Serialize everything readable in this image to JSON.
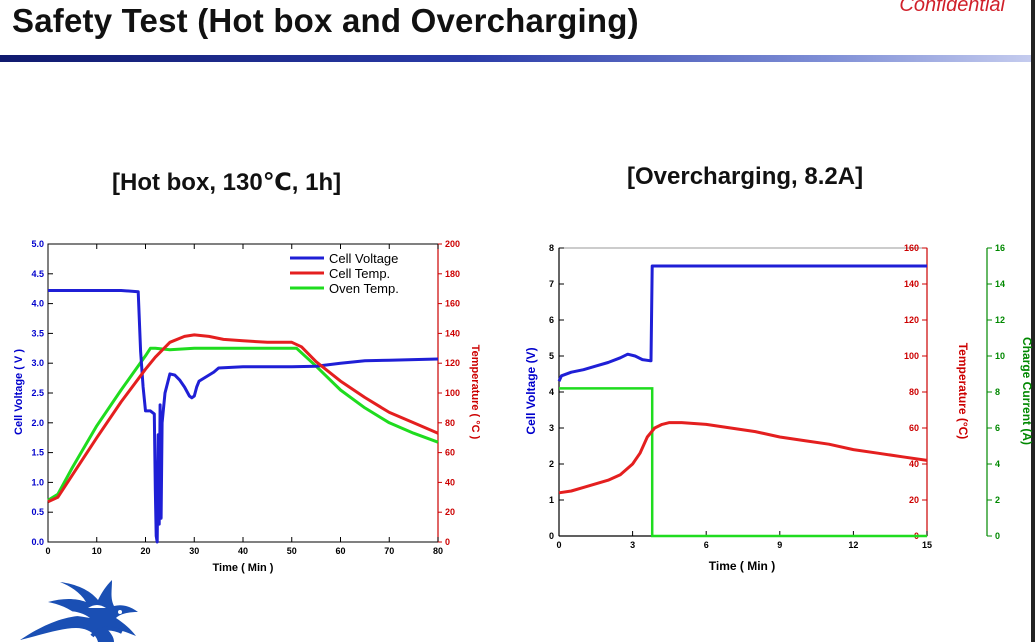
{
  "header": {
    "title": "Safety Test (Hot box and Overcharging)",
    "confidential": "Confidential"
  },
  "colors": {
    "voltage": "#1f1fd6",
    "temperature": "#e41f1f",
    "current": "#1fdc1f",
    "axis_temp": "#cc0000",
    "axis_current": "#008800",
    "axis_voltage": "#0000cc"
  },
  "chart_data": [
    {
      "type": "line",
      "title": "[Hot box, 130℃, 1h]",
      "xlabel": "Time ( Min )",
      "ylabel": "Cell Voltage ( V )",
      "y2label": "Temperature ( °C )",
      "xlim": [
        0,
        80
      ],
      "ylim": [
        0,
        5
      ],
      "y2lim": [
        0,
        200
      ],
      "xticks": [
        0,
        10,
        20,
        30,
        40,
        50,
        60,
        70,
        80
      ],
      "yticks": [
        0.0,
        0.5,
        1.0,
        1.5,
        2.0,
        2.5,
        3.0,
        3.5,
        4.0,
        4.5,
        5.0
      ],
      "y2ticks": [
        0,
        20,
        40,
        60,
        80,
        100,
        120,
        140,
        160,
        180,
        200
      ],
      "grid": false,
      "legend": "top-right",
      "series": [
        {
          "name": "Cell Voltage",
          "axis": "left",
          "x": [
            0,
            5,
            10,
            15,
            18.5,
            19,
            19.5,
            20,
            21,
            21.8,
            22.0,
            22.2,
            22.4,
            22.6,
            22.8,
            23.0,
            23.2,
            23.4,
            24,
            25,
            26,
            27,
            28,
            29,
            29.5,
            30,
            30.5,
            31,
            32,
            33,
            34,
            35,
            40,
            45,
            50,
            55,
            60,
            65,
            70,
            75,
            80
          ],
          "y": [
            4.22,
            4.22,
            4.22,
            4.22,
            4.2,
            3.2,
            2.6,
            2.2,
            2.2,
            2.15,
            0.9,
            0.1,
            0.0,
            1.8,
            0.3,
            2.3,
            0.4,
            2.0,
            2.5,
            2.82,
            2.8,
            2.72,
            2.6,
            2.45,
            2.42,
            2.45,
            2.6,
            2.7,
            2.75,
            2.8,
            2.85,
            2.92,
            2.94,
            2.94,
            2.94,
            2.95,
            3.0,
            3.04,
            3.05,
            3.06,
            3.07
          ]
        },
        {
          "name": "Cell Temp.",
          "axis": "right",
          "x": [
            0,
            2,
            5,
            10,
            15,
            20,
            22,
            25,
            28,
            30,
            33,
            36,
            40,
            45,
            50,
            52,
            55,
            60,
            65,
            70,
            75,
            80
          ],
          "y": [
            27,
            30,
            45,
            70,
            94,
            116,
            124,
            134,
            138,
            139,
            138,
            136,
            135,
            134,
            134,
            131,
            121,
            108,
            97,
            87,
            80,
            73
          ]
        },
        {
          "name": "Oven Temp.",
          "axis": "right",
          "x": [
            0,
            2,
            5,
            10,
            15,
            20,
            21,
            22,
            25,
            30,
            35,
            40,
            45,
            50,
            51,
            52,
            55,
            60,
            65,
            70,
            75,
            80
          ],
          "y": [
            28,
            32,
            50,
            78,
            102,
            125,
            130,
            130,
            129,
            130,
            130,
            130,
            130,
            130,
            130,
            127,
            118,
            102,
            90,
            80,
            73,
            67
          ]
        }
      ]
    },
    {
      "type": "line",
      "title": "[Overcharging, 8.2A]",
      "xlabel": "Time ( Min )",
      "ylabel": "Cell Voltage (V)",
      "y2label": "Temperature (°C)",
      "y3label": "Charge Current (A)",
      "xlim": [
        0,
        15
      ],
      "ylim": [
        0,
        8
      ],
      "y2lim": [
        0,
        160
      ],
      "y3lim": [
        0,
        16
      ],
      "xticks": [
        0,
        3,
        6,
        9,
        12,
        15
      ],
      "yticks": [
        0,
        1,
        2,
        3,
        4,
        5,
        6,
        7,
        8
      ],
      "y2ticks": [
        0,
        20,
        40,
        60,
        80,
        100,
        120,
        140,
        160
      ],
      "y3ticks": [
        0,
        2,
        4,
        6,
        8,
        10,
        12,
        14,
        16
      ],
      "grid": false,
      "series": [
        {
          "axis": "left",
          "x": [
            0,
            0.1,
            0.5,
            1,
            1.5,
            2,
            2.5,
            2.8,
            3.1,
            3.4,
            3.7,
            3.75,
            3.8,
            3.85,
            6,
            9,
            12,
            15
          ],
          "y": [
            4.3,
            4.45,
            4.55,
            4.62,
            4.72,
            4.82,
            4.95,
            5.05,
            5.0,
            4.9,
            4.87,
            4.87,
            7.5,
            7.5,
            7.5,
            7.5,
            7.5,
            7.5
          ]
        },
        {
          "axis": "right",
          "x": [
            0,
            0.5,
            1,
            1.5,
            2,
            2.5,
            3,
            3.3,
            3.6,
            3.9,
            4.2,
            4.5,
            5,
            5.5,
            6,
            7,
            8,
            9,
            10,
            11,
            12,
            13,
            14,
            15
          ],
          "y": [
            24,
            25,
            27,
            29,
            31,
            34,
            40,
            46,
            55,
            60,
            62,
            63,
            63,
            62.5,
            62,
            60,
            58,
            55,
            53,
            51,
            48,
            46,
            44,
            42
          ]
        },
        {
          "axis": "right2",
          "x": [
            0,
            1,
            2,
            3,
            3.8,
            3.8,
            4,
            6,
            9,
            12,
            15
          ],
          "y": [
            8.2,
            8.2,
            8.2,
            8.2,
            8.2,
            0,
            0,
            0,
            0,
            0,
            0
          ]
        }
      ]
    }
  ]
}
